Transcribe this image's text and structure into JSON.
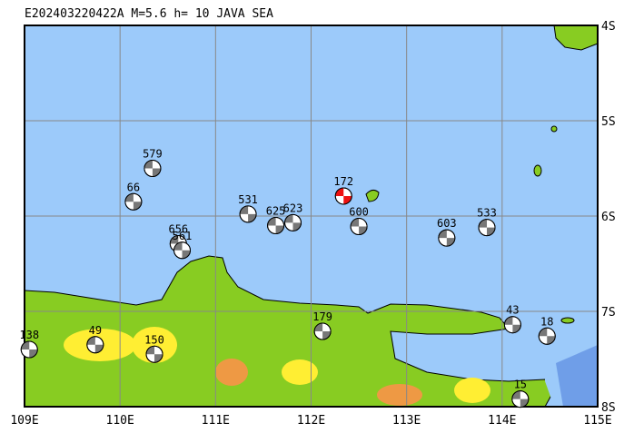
{
  "header": {
    "title": "E202403220422A M=5.6 h= 10 JAVA SEA"
  },
  "map": {
    "lonlim": [
      109,
      115
    ],
    "latlim": [
      4,
      8
    ],
    "xticks": [
      {
        "value": 109,
        "label": "109E"
      },
      {
        "value": 110,
        "label": "110E"
      },
      {
        "value": 111,
        "label": "111E"
      },
      {
        "value": 112,
        "label": "112E"
      },
      {
        "value": 113,
        "label": "113E"
      },
      {
        "value": 114,
        "label": "114E"
      },
      {
        "value": 115,
        "label": "115E"
      }
    ],
    "yticks": [
      {
        "value": 4,
        "label": "4S"
      },
      {
        "value": 5,
        "label": "5S"
      },
      {
        "value": 6,
        "label": "6S"
      },
      {
        "value": 7,
        "label": "7S"
      },
      {
        "value": 8,
        "label": "8S"
      }
    ],
    "events": [
      {
        "label": "579",
        "lon": 110.34,
        "lat": 5.5
      },
      {
        "label": "66",
        "lon": 110.14,
        "lat": 5.85
      },
      {
        "label": "531",
        "lon": 111.34,
        "lat": 5.98
      },
      {
        "label": "625",
        "lon": 111.63,
        "lat": 6.1
      },
      {
        "label": "623",
        "lon": 111.81,
        "lat": 6.07
      },
      {
        "label": "656",
        "lon": 110.61,
        "lat": 6.29
      },
      {
        "label": "561",
        "lon": 110.65,
        "lat": 6.36
      },
      {
        "label": "172",
        "lon": 112.34,
        "lat": 5.79,
        "color": "#ee1111"
      },
      {
        "label": "600",
        "lon": 112.5,
        "lat": 6.11
      },
      {
        "label": "603",
        "lon": 113.42,
        "lat": 6.23
      },
      {
        "label": "533",
        "lon": 113.84,
        "lat": 6.12
      },
      {
        "label": "43",
        "lon": 114.11,
        "lat": 7.14
      },
      {
        "label": "18",
        "lon": 114.47,
        "lat": 7.26
      },
      {
        "label": "15",
        "lon": 114.19,
        "lat": 7.92
      },
      {
        "label": "138",
        "lon": 109.05,
        "lat": 7.4
      },
      {
        "label": "49",
        "lon": 109.74,
        "lat": 7.35
      },
      {
        "label": "150",
        "lon": 110.36,
        "lat": 7.45
      },
      {
        "label": "179",
        "lon": 112.12,
        "lat": 7.21
      }
    ]
  }
}
